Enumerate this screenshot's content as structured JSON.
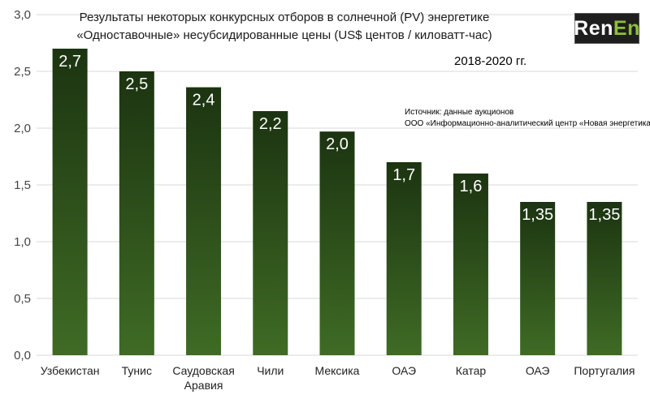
{
  "title_line1": "Результаты некоторых конкурсных отборов в солнечной (PV) энергетике",
  "title_line2": "«Одноставочные» несубсидированные цены (US$ центов / киловатт-час)",
  "period": "2018-2020 гг.",
  "source_line1": "Источник: данные аукционов",
  "source_line2": "ООО «Информационно-аналитический центр «Новая энергетика»",
  "logo": {
    "part1": "Ren",
    "part2": "En"
  },
  "colors": {
    "bar_top": "#1c3411",
    "bar_bottom": "#3f6b25",
    "grid": "#d9d9d9",
    "label": "#ffffff",
    "logo_accent": "#8fbf3a"
  },
  "chart_data": {
    "type": "bar",
    "categories": [
      "Узбекистан",
      "Тунис",
      "Саудовская Аравия",
      "Чили",
      "Мексика",
      "ОАЭ",
      "Катар",
      "ОАЭ",
      "Португалия"
    ],
    "category_lines": [
      [
        "Узбекистан"
      ],
      [
        "Тунис"
      ],
      [
        "Саудовская",
        "Аравия"
      ],
      [
        "Чили"
      ],
      [
        "Мексика"
      ],
      [
        "ОАЭ"
      ],
      [
        "Катар"
      ],
      [
        "ОАЭ"
      ],
      [
        "Португалия"
      ]
    ],
    "values": [
      2.7,
      2.5,
      2.36,
      2.15,
      1.97,
      1.7,
      1.6,
      1.35,
      1.35
    ],
    "data_labels": [
      "2,7",
      "2,5",
      "2,4",
      "2,2",
      "2,0",
      "1,7",
      "1,6",
      "1,35",
      "1,35"
    ],
    "yticks": [
      "0,0",
      "0,5",
      "1,0",
      "1,5",
      "2,0",
      "2,5",
      "3,0"
    ],
    "ylim": [
      0,
      3
    ],
    "grid": true,
    "legend": "none"
  }
}
